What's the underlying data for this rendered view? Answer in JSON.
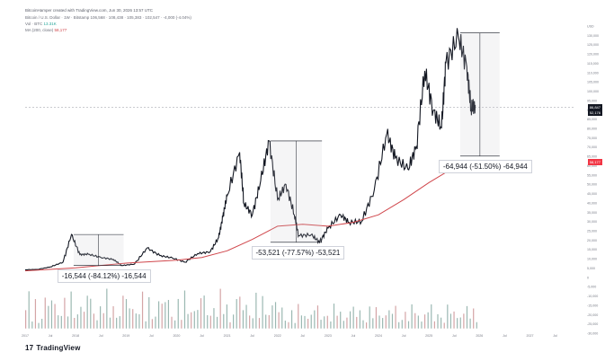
{
  "header": {
    "author_line": "BitcoinHamper created with TradingView.com, Jun 30, 2026 13:57 UTC"
  },
  "legend": {
    "symbol_line": "Bitcoin / U.S. Dollar · 1W · Bitstamp",
    "ohlc": "106,568 · 108,438 · 105,383 · 102,547 · -4,000 (-4.04%)",
    "vol_label": "Vol · BTC",
    "vol_value": "13.31K",
    "ma_label": "MA (200, close)",
    "ma_value": "58,177"
  },
  "branding": {
    "logo_mark": "17",
    "logo_text": "TradingView"
  },
  "price_tags": [
    {
      "text": "86,847",
      "color": "#131722"
    },
    {
      "text": "52,176",
      "color": "#131722"
    },
    {
      "text": "58,177",
      "color": "#f23645"
    }
  ],
  "annotations": [
    {
      "text": "-16,544 (-84.12%) -16,544"
    },
    {
      "text": "-53,521 (-77.57%) -53,521"
    },
    {
      "text": "-64,944 (-51.50%) -64,944"
    }
  ],
  "chart_data": {
    "type": "candlestick",
    "title": "",
    "y_unit": "USD",
    "x_tick_labels": [
      "2017",
      "Jul",
      "2018",
      "Jul",
      "2019",
      "Jul",
      "2020",
      "Jul",
      "2021",
      "Jul",
      "2022",
      "Jul",
      "2023",
      "Jul",
      "2024",
      "Jul",
      "2025",
      "Jul",
      "2026",
      "Jul",
      "2027",
      "Jul"
    ],
    "y_tick_labels": [
      "USD",
      "130,000",
      "125,000",
      "120,000",
      "115,000",
      "110,000",
      "105,000",
      "100,000",
      "95,000",
      "90,000",
      "85,000",
      "80,000",
      "75,000",
      "70,000",
      "65,000",
      "60,000",
      "55,000",
      "50,000",
      "45,000",
      "40,000",
      "35,000",
      "30,000",
      "25,000",
      "20,000",
      "15,000",
      "10,000",
      "5,000",
      "0",
      "-5,000",
      "-10,000",
      "-15,000",
      "-20,000",
      "-25,000",
      "-30,000"
    ],
    "ylim": [
      -32000,
      132000
    ],
    "price_series": {
      "name": "Bitcoin / U.S. Dollar",
      "points": [
        [
          "2017-01",
          1000
        ],
        [
          "2017-04",
          1200
        ],
        [
          "2017-07",
          2500
        ],
        [
          "2017-10",
          5000
        ],
        [
          "2017-12",
          19600
        ],
        [
          "2018-02",
          9000
        ],
        [
          "2018-04",
          9200
        ],
        [
          "2018-07",
          7500
        ],
        [
          "2018-10",
          6400
        ],
        [
          "2018-12",
          3200
        ],
        [
          "2019-03",
          4000
        ],
        [
          "2019-06",
          12500
        ],
        [
          "2019-09",
          8500
        ],
        [
          "2019-12",
          7200
        ],
        [
          "2020-03",
          5000
        ],
        [
          "2020-06",
          9500
        ],
        [
          "2020-09",
          10500
        ],
        [
          "2020-11",
          18000
        ],
        [
          "2020-12",
          29000
        ],
        [
          "2021-01",
          40000
        ],
        [
          "2021-04",
          63000
        ],
        [
          "2021-05",
          36000
        ],
        [
          "2021-07",
          30000
        ],
        [
          "2021-09",
          48000
        ],
        [
          "2021-11",
          69000
        ],
        [
          "2022-01",
          38000
        ],
        [
          "2022-03",
          46000
        ],
        [
          "2022-05",
          30000
        ],
        [
          "2022-06",
          19000
        ],
        [
          "2022-09",
          19500
        ],
        [
          "2022-11",
          15500
        ],
        [
          "2023-01",
          23000
        ],
        [
          "2023-04",
          30000
        ],
        [
          "2023-06",
          26000
        ],
        [
          "2023-09",
          26500
        ],
        [
          "2023-12",
          43000
        ],
        [
          "2024-03",
          73000
        ],
        [
          "2024-05",
          60000
        ],
        [
          "2024-08",
          54000
        ],
        [
          "2024-10",
          66000
        ],
        [
          "2024-12",
          106000
        ],
        [
          "2025-02",
          85000
        ],
        [
          "2025-04",
          76000
        ],
        [
          "2025-05",
          110000
        ],
        [
          "2025-08",
          124000
        ],
        [
          "2025-10",
          108000
        ],
        [
          "2025-11",
          86000
        ],
        [
          "2025-12",
          88000
        ]
      ]
    },
    "ma_series": {
      "name": "MA (200, close)",
      "color": "#d0464b",
      "points": [
        [
          "2017-01",
          400
        ],
        [
          "2018-01",
          2000
        ],
        [
          "2019-01",
          4500
        ],
        [
          "2020-01",
          6000
        ],
        [
          "2020-07",
          7500
        ],
        [
          "2021-01",
          11000
        ],
        [
          "2021-07",
          17000
        ],
        [
          "2022-01",
          24000
        ],
        [
          "2022-07",
          25000
        ],
        [
          "2023-01",
          24000
        ],
        [
          "2023-07",
          26000
        ],
        [
          "2024-01",
          30000
        ],
        [
          "2024-07",
          38000
        ],
        [
          "2025-01",
          47000
        ],
        [
          "2025-07",
          55000
        ],
        [
          "2025-12",
          58200
        ]
      ]
    },
    "drawdowns": [
      {
        "high": 19600,
        "low": 3200,
        "change": -16544,
        "percent": -84.12
      },
      {
        "high": 69000,
        "low": 15500,
        "change": -53521,
        "percent": -77.57
      },
      {
        "high": 126000,
        "low": 61000,
        "change": -64944,
        "percent": -51.5
      }
    ],
    "current_price": 86847,
    "horizontal_line": 86847
  }
}
